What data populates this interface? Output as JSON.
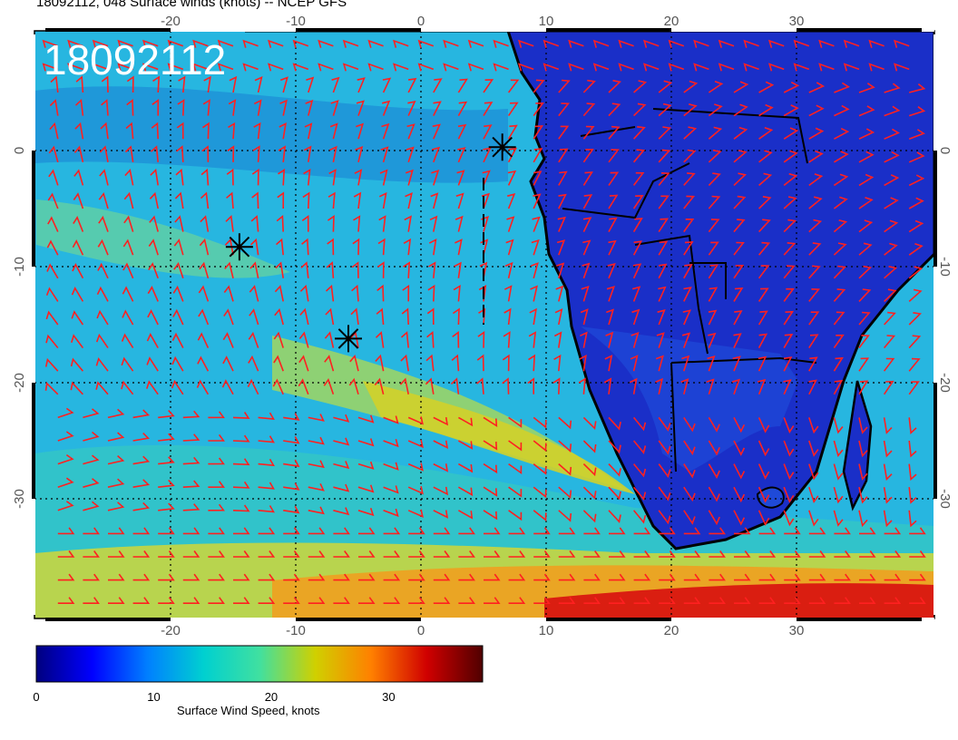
{
  "title": "18092112, 048 Surface winds (knots) -- NCEP GFS",
  "stamp": "18092112",
  "colorbar": {
    "label": "Surface Wind Speed, knots",
    "ticks": [
      "0",
      "10",
      "20",
      "30"
    ],
    "range": [
      0,
      38
    ],
    "colors": [
      "#00007f",
      "#0000ff",
      "#0080ff",
      "#00d0d0",
      "#40e0a0",
      "#d0d000",
      "#ff8000",
      "#d00000",
      "#500000"
    ]
  },
  "axes": {
    "x_ticks": [
      "-20",
      "-10",
      "0",
      "10",
      "20",
      "30"
    ],
    "y_ticks": [
      "0",
      "-10",
      "-20",
      "-30"
    ],
    "lon_range": [
      -30,
      41
    ],
    "lat_range": [
      -40,
      10
    ]
  },
  "markers": [
    {
      "lon": 6.5,
      "lat": 0.3
    },
    {
      "lon": -14.5,
      "lat": -8.3
    },
    {
      "lon": -5.8,
      "lat": -16.2
    }
  ],
  "colors": {
    "barbs": "#ff2020",
    "land": "#1a2fc8",
    "coast": "#000000"
  }
}
